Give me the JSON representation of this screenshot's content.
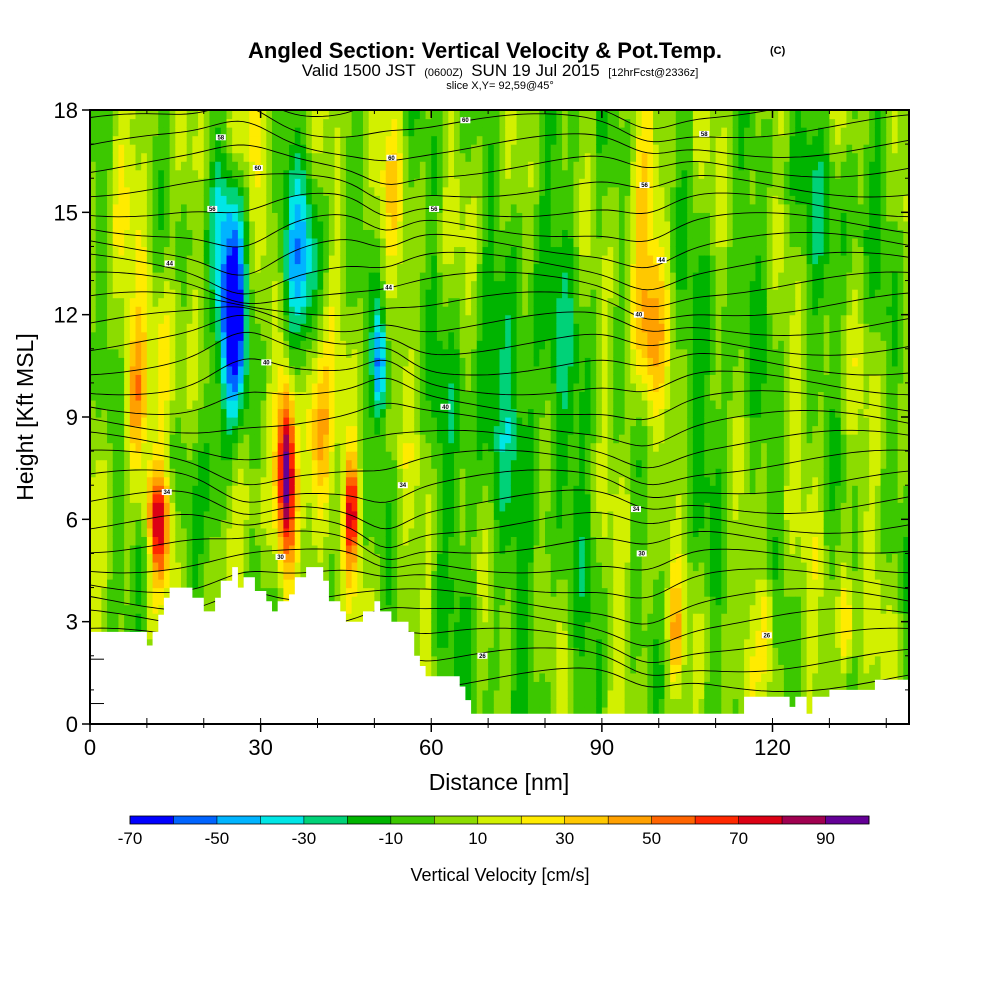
{
  "chart_data": {
    "type": "heatmap",
    "title": "Angled Section: Vertical Velocity & Pot.Temp.",
    "title_tag": "(C)",
    "subtitle": {
      "valid_prefix": "Valid 1500 JST",
      "utc": "(0600Z)",
      "date": "SUN 19 Jul 2015",
      "forecast": "[12hrFcst@2336z]"
    },
    "slice_label": "slice X,Y= 92,59@45°",
    "xlabel": "Distance [nm]",
    "ylabel": "Height [Kft MSL]",
    "xlim": [
      0,
      144
    ],
    "ylim": [
      0,
      18
    ],
    "x_ticks": [
      "0",
      "30",
      "60",
      "90",
      "120"
    ],
    "x_tick_values": [
      0,
      30,
      60,
      90,
      120
    ],
    "y_ticks": [
      "0",
      "3",
      "6",
      "9",
      "12",
      "15",
      "18"
    ],
    "y_tick_values": [
      0,
      3,
      6,
      9,
      12,
      15,
      18
    ],
    "colorbar": {
      "label": "Vertical Velocity [cm/s]",
      "tick_labels": [
        "-70",
        "-50",
        "-30",
        "-10",
        "10",
        "30",
        "50",
        "70",
        "90"
      ],
      "levels": [
        -70,
        -60,
        -50,
        -40,
        -30,
        -20,
        -10,
        0,
        10,
        20,
        30,
        40,
        50,
        60,
        70,
        80,
        90
      ],
      "colors": [
        "#0000ff",
        "#0064ff",
        "#00b4ff",
        "#00e6e6",
        "#00d278",
        "#00b400",
        "#3cc800",
        "#8cdc00",
        "#d2f000",
        "#ffeb00",
        "#ffc800",
        "#ffa000",
        "#ff6400",
        "#ff2800",
        "#dc0014",
        "#a00050",
        "#640096"
      ]
    },
    "field": "vertical_velocity_cm_s",
    "features": [
      {
        "x": 8,
        "z": 9.5,
        "w": 40,
        "sx": 2,
        "sz": 2.0
      },
      {
        "x": 12,
        "z": 5.8,
        "w": 70,
        "sx": 2.2,
        "sz": 1.6
      },
      {
        "x": 14,
        "z": 11,
        "w": 20,
        "sx": 3,
        "sz": 2.5
      },
      {
        "x": 10,
        "z": 5,
        "w": -30,
        "sx": 2,
        "sz": 1.2
      },
      {
        "x": 6,
        "z": 15,
        "w": 15,
        "sx": 4,
        "sz": 2
      },
      {
        "x": 25,
        "z": 11.8,
        "w": -70,
        "sx": 2.5,
        "sz": 2.8
      },
      {
        "x": 23,
        "z": 15,
        "w": -30,
        "sx": 4,
        "sz": 2.5
      },
      {
        "x": 22,
        "z": 7.5,
        "w": -30,
        "sx": 2.5,
        "sz": 2.5
      },
      {
        "x": 26,
        "z": 6,
        "w": 15,
        "sx": 4,
        "sz": 2
      },
      {
        "x": 26,
        "z": 17.3,
        "w": 25,
        "sx": 4,
        "sz": 1.5
      },
      {
        "x": 34.5,
        "z": 7.5,
        "w": 90,
        "sx": 1.5,
        "sz": 2.5
      },
      {
        "x": 40,
        "z": 8.5,
        "w": 50,
        "sx": 2.5,
        "sz": 2.5
      },
      {
        "x": 37,
        "z": 13.5,
        "w": -45,
        "sx": 3.5,
        "sz": 2.5
      },
      {
        "x": 46,
        "z": 6.2,
        "w": 70,
        "sx": 1.2,
        "sz": 1.6
      },
      {
        "x": 51,
        "z": 10.5,
        "w": -55,
        "sx": 1.2,
        "sz": 1.6
      },
      {
        "x": 53,
        "z": 16,
        "w": 15,
        "sx": 2.5,
        "sz": 2
      },
      {
        "x": 68,
        "z": 15,
        "w": 15,
        "sx": 6,
        "sz": 2
      },
      {
        "x": 98,
        "z": 11.5,
        "w": 40,
        "sx": 3,
        "sz": 2.5
      },
      {
        "x": 97,
        "z": 15.5,
        "w": 20,
        "sx": 3,
        "sz": 2
      },
      {
        "x": 103,
        "z": 2.6,
        "w": 30,
        "sx": 1.2,
        "sz": 1.5
      },
      {
        "x": 119,
        "z": 2.8,
        "w": 35,
        "sx": 1.2,
        "sz": 1.5
      },
      {
        "x": 133,
        "z": 2.8,
        "w": 35,
        "sx": 1.2,
        "sz": 1.5
      },
      {
        "x": 75,
        "z": 10,
        "w": -15,
        "sx": 12,
        "sz": 4
      },
      {
        "x": 110,
        "z": 10,
        "w": -12,
        "sx": 8,
        "sz": 5
      },
      {
        "x": 130,
        "z": 15,
        "w": -15,
        "sx": 10,
        "sz": 3
      }
    ],
    "terrain_kft": [
      [
        0,
        2.7
      ],
      [
        10,
        2.7
      ],
      [
        10,
        2.3
      ],
      [
        11,
        2.3
      ],
      [
        11,
        2.7
      ],
      [
        12,
        2.7
      ],
      [
        12,
        3.2
      ],
      [
        13,
        3.2
      ],
      [
        13,
        3.7
      ],
      [
        14,
        3.7
      ],
      [
        14,
        4.0
      ],
      [
        18,
        4.0
      ],
      [
        18,
        3.7
      ],
      [
        20,
        3.7
      ],
      [
        20,
        3.3
      ],
      [
        22,
        3.3
      ],
      [
        22,
        3.7
      ],
      [
        23,
        3.7
      ],
      [
        23,
        4.2
      ],
      [
        25,
        4.2
      ],
      [
        25,
        4.6
      ],
      [
        26,
        4.6
      ],
      [
        26,
        4.0
      ],
      [
        27,
        4.0
      ],
      [
        27,
        4.3
      ],
      [
        29,
        4.3
      ],
      [
        29,
        3.9
      ],
      [
        31,
        3.9
      ],
      [
        31,
        3.6
      ],
      [
        32,
        3.6
      ],
      [
        32,
        3.3
      ],
      [
        33,
        3.3
      ],
      [
        33,
        3.6
      ],
      [
        34,
        3.6
      ],
      [
        34,
        3.6
      ],
      [
        35,
        3.6
      ],
      [
        35,
        3.8
      ],
      [
        36,
        3.8
      ],
      [
        36,
        4.3
      ],
      [
        38,
        4.3
      ],
      [
        38,
        4.6
      ],
      [
        41,
        4.6
      ],
      [
        41,
        4.2
      ],
      [
        42,
        4.2
      ],
      [
        42,
        3.6
      ],
      [
        44,
        3.6
      ],
      [
        44,
        3.3
      ],
      [
        45,
        3.3
      ],
      [
        45,
        3.0
      ],
      [
        48,
        3.0
      ],
      [
        48,
        3.3
      ],
      [
        50,
        3.3
      ],
      [
        50,
        3.6
      ],
      [
        51,
        3.6
      ],
      [
        51,
        3.3
      ],
      [
        53,
        3.3
      ],
      [
        53,
        3.0
      ],
      [
        56,
        3.0
      ],
      [
        56,
        2.7
      ],
      [
        57,
        2.7
      ],
      [
        57,
        2.0
      ],
      [
        58,
        2.0
      ],
      [
        58,
        1.7
      ],
      [
        59,
        1.7
      ],
      [
        59,
        1.4
      ],
      [
        65,
        1.4
      ],
      [
        65,
        1.1
      ],
      [
        66,
        1.1
      ],
      [
        66,
        0.7
      ],
      [
        67,
        0.7
      ],
      [
        67,
        0.3
      ],
      [
        115,
        0.3
      ],
      [
        115,
        0.8
      ],
      [
        123,
        0.8
      ],
      [
        123,
        0.5
      ],
      [
        124,
        0.5
      ],
      [
        124,
        0.8
      ],
      [
        126,
        0.8
      ],
      [
        126,
        0.3
      ],
      [
        127,
        0.3
      ],
      [
        127,
        0.8
      ],
      [
        130,
        0.8
      ],
      [
        130,
        1.0
      ],
      [
        138,
        1.0
      ],
      [
        138,
        1.3
      ],
      [
        144,
        1.3
      ]
    ],
    "theta_contours": {
      "count": 30,
      "label_values": [
        "60",
        "58",
        "56",
        "44",
        "40",
        "34",
        "30",
        "26"
      ],
      "labels": [
        {
          "x": 23,
          "z": 17.2,
          "text": "58"
        },
        {
          "x": 29.5,
          "z": 16.3,
          "text": "60"
        },
        {
          "x": 53,
          "z": 16.6,
          "text": "60"
        },
        {
          "x": 66,
          "z": 17.7,
          "text": "60"
        },
        {
          "x": 108,
          "z": 17.3,
          "text": "58"
        },
        {
          "x": 21.5,
          "z": 15.1,
          "text": "56"
        },
        {
          "x": 60.5,
          "z": 15.1,
          "text": "56"
        },
        {
          "x": 97.5,
          "z": 15.8,
          "text": "56"
        },
        {
          "x": 14,
          "z": 13.5,
          "text": "44"
        },
        {
          "x": 52.5,
          "z": 12.8,
          "text": "44"
        },
        {
          "x": 100.5,
          "z": 13.6,
          "text": "44"
        },
        {
          "x": 31,
          "z": 10.6,
          "text": "40"
        },
        {
          "x": 62.5,
          "z": 9.3,
          "text": "40"
        },
        {
          "x": 96.5,
          "z": 12.0,
          "text": "40"
        },
        {
          "x": 13.5,
          "z": 6.8,
          "text": "34"
        },
        {
          "x": 55,
          "z": 7.0,
          "text": "34"
        },
        {
          "x": 96,
          "z": 6.3,
          "text": "34"
        },
        {
          "x": 33.5,
          "z": 4.9,
          "text": "30"
        },
        {
          "x": 97,
          "z": 5.0,
          "text": "30"
        },
        {
          "x": 69,
          "z": 2.0,
          "text": "26"
        },
        {
          "x": 119,
          "z": 2.6,
          "text": "26"
        }
      ]
    }
  }
}
